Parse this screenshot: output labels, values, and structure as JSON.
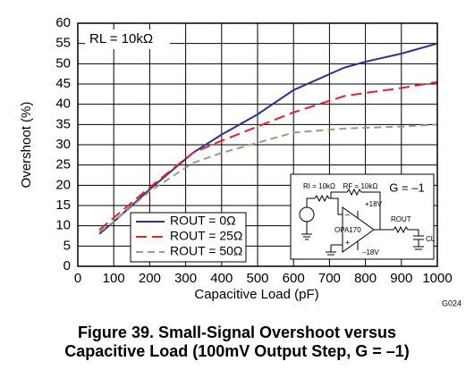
{
  "chart_data": {
    "type": "line",
    "annotation": "RL = 10kΩ",
    "code": "G024",
    "caption": [
      "Figure 39.  Small-Signal Overshoot versus",
      "Capacitive Load (100mV Output Step, G = –1)"
    ],
    "x_label": "Capacitive Load (pF)",
    "y_label": "Overshoot (%)",
    "x": [
      60,
      100,
      200,
      320,
      400,
      500,
      600,
      740,
      800,
      900,
      1000
    ],
    "series": [
      {
        "name": "ROUT = 0Ω",
        "color": "#2e3192",
        "dash": "none",
        "values": [
          8,
          11,
          19,
          28,
          32.5,
          37.5,
          43.5,
          49,
          50.5,
          52.5,
          55
        ]
      },
      {
        "name": "ROUT = 25Ω",
        "color": "#e8202a",
        "dash": "12 6",
        "values": [
          9,
          12,
          19.5,
          28,
          31,
          34.5,
          38,
          42,
          42.8,
          44,
          45.5
        ]
      },
      {
        "name": "ROUT = 50Ω",
        "color": "#9b9b82",
        "dash": "8 5",
        "values": [
          8.5,
          11,
          18.5,
          25.5,
          28,
          30.5,
          33,
          34,
          34.2,
          34.5,
          35
        ]
      }
    ],
    "xlim": [
      0,
      1000
    ],
    "xticks": [
      0,
      100,
      200,
      300,
      400,
      500,
      600,
      700,
      800,
      900,
      1000
    ],
    "ylim": [
      0,
      60
    ],
    "yticks": [
      0,
      5,
      10,
      15,
      20,
      25,
      30,
      35,
      40,
      45,
      50,
      55,
      60
    ],
    "grid": true,
    "legend": "lower left",
    "circuit": {
      "ri": "RI = 10kΩ",
      "rf": "RF = 10kΩ",
      "gain": "G = –1",
      "vpos": "+18V",
      "amp": "OPA170",
      "vneg": "–18V",
      "rout": "ROUT",
      "cl": "CL"
    }
  }
}
